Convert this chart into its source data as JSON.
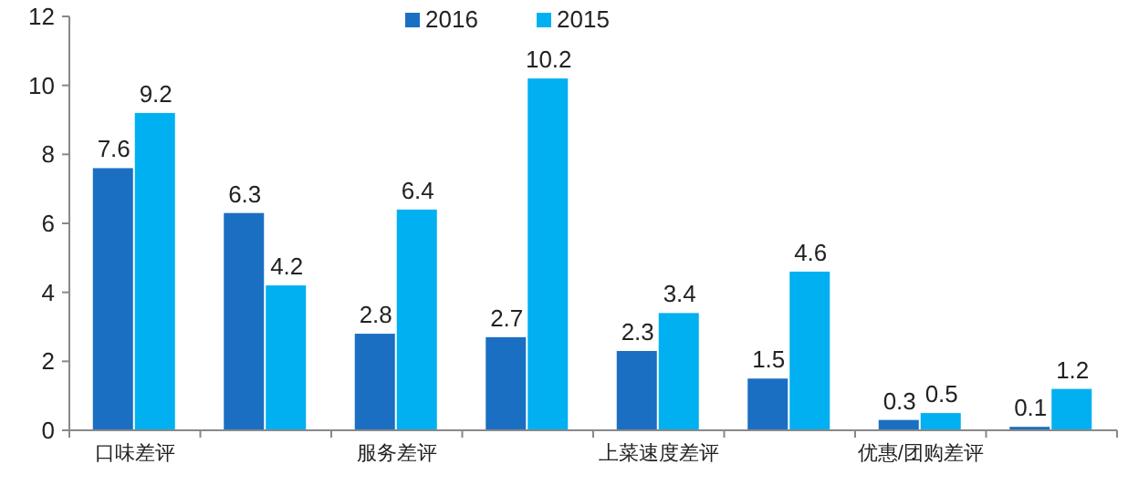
{
  "chart_data": {
    "type": "bar",
    "categories": [
      "口味差评",
      null,
      "服务差评",
      null,
      "上菜速度差评",
      null,
      "优惠/团购差评",
      null
    ],
    "series": [
      {
        "name": "2016",
        "color": "#1b6fc2",
        "values": [
          7.6,
          6.3,
          2.8,
          2.7,
          2.3,
          1.5,
          0.3,
          0.1
        ]
      },
      {
        "name": "2015",
        "color": "#00b0f0",
        "values": [
          9.2,
          4.2,
          6.4,
          10.2,
          3.4,
          4.6,
          0.5,
          1.2
        ]
      }
    ],
    "ylim": [
      0,
      12
    ],
    "yticks": [
      0,
      2,
      4,
      6,
      8,
      10,
      12
    ],
    "data_labels": true,
    "grid": false,
    "legend": "top"
  }
}
